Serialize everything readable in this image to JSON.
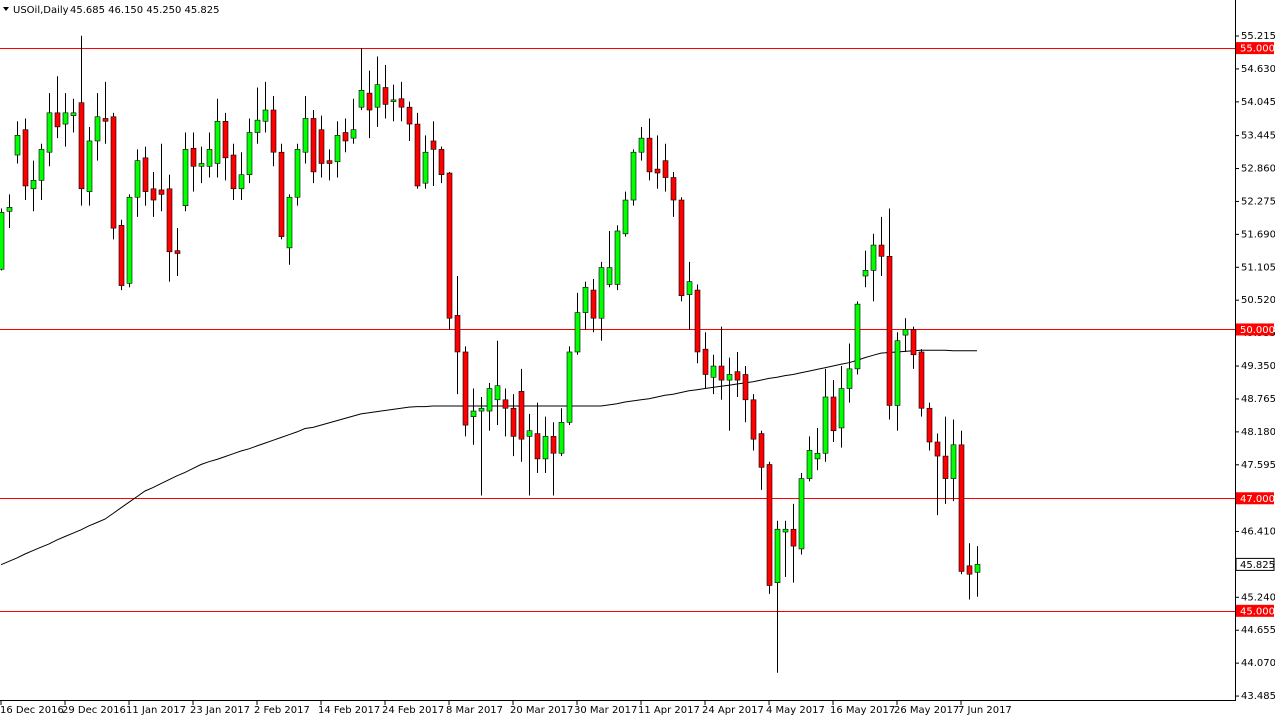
{
  "chart_data": {
    "type": "candlestick",
    "title": "USOil,Daily",
    "ohlc_label": "45.685 46.150 45.250 45.825",
    "categories": [
      "16 Dec 2016",
      null,
      null,
      null,
      null,
      null,
      null,
      null,
      "29 Dec 2016",
      null,
      null,
      null,
      null,
      null,
      null,
      null,
      "11 Jan 2017",
      null,
      null,
      null,
      null,
      null,
      null,
      null,
      "23 Jan 2017",
      null,
      null,
      null,
      null,
      null,
      null,
      null,
      "2 Feb 2017",
      null,
      null,
      null,
      null,
      null,
      null,
      null,
      "14 Feb 2017",
      null,
      null,
      null,
      null,
      null,
      null,
      null,
      "24 Feb 2017",
      null,
      null,
      null,
      null,
      null,
      null,
      null,
      "8 Mar 2017",
      null,
      null,
      null,
      null,
      null,
      null,
      null,
      "20 Mar 2017",
      null,
      null,
      null,
      null,
      null,
      null,
      null,
      "30 Mar 2017",
      null,
      null,
      null,
      null,
      null,
      null,
      null,
      "11 Apr 2017",
      null,
      null,
      null,
      null,
      null,
      null,
      null,
      "24 Apr 2017",
      null,
      null,
      null,
      null,
      null,
      null,
      null,
      "4 May 2017",
      null,
      null,
      null,
      null,
      null,
      null,
      null,
      "16 May 2017",
      null,
      null,
      null,
      null,
      null,
      null,
      null,
      "26 May 2017",
      null,
      null,
      null,
      null,
      null,
      null,
      null,
      "7 Jun 2017",
      null,
      null
    ],
    "open": [
      51.07,
      52.1,
      53.1,
      53.55,
      52.5,
      52.65,
      53.15,
      53.85,
      53.65,
      53.8,
      54.03,
      52.45,
      53.35,
      53.75,
      53.78,
      51.85,
      50.82,
      52.35,
      53.05,
      52.5,
      52.48,
      52.5,
      51.4,
      52.2,
      53.22,
      52.9,
      52.9,
      52.95,
      53.7,
      53.1,
      52.5,
      52.75,
      53.5,
      53.7,
      53.9,
      53.15,
      51.45,
      52.35,
      53.15,
      53.75,
      53.55,
      53.0,
      52.98,
      53.5,
      53.4,
      53.95,
      54.2,
      53.95,
      54.3,
      54.05,
      54.1,
      53.95,
      53.65,
      52.6,
      53.35,
      53.2,
      52.78,
      50.25,
      49.6,
      48.45,
      48.55,
      48.55,
      48.75,
      48.75,
      48.6,
      48.9,
      48.1,
      48.15,
      47.7,
      48.1,
      47.8,
      48.35,
      49.6,
      50.3,
      50.7,
      50.2,
      50.8,
      50.8,
      51.7,
      52.3,
      53.15,
      53.4,
      52.85,
      53.0,
      52.7,
      52.3,
      50.62,
      50.7,
      49.65,
      49.15,
      49.35,
      49.1,
      49.25,
      49.2,
      48.75,
      48.15,
      47.6,
      45.5,
      46.4,
      46.45,
      46.1,
      47.35,
      47.7,
      47.8,
      48.8,
      48.25,
      48.95,
      49.3,
      50.95,
      51.05,
      51.5,
      51.3,
      48.65,
      49.9,
      50.0,
      49.6,
      48.6,
      48.0,
      47.75,
      47.35,
      47.95,
      45.8,
      45.685
    ],
    "high": [
      52.15,
      52.4,
      53.7,
      53.75,
      53.0,
      53.3,
      54.2,
      54.5,
      54.2,
      54.1,
      55.22,
      53.6,
      54.2,
      54.4,
      53.85,
      51.95,
      52.4,
      53.2,
      53.25,
      52.8,
      53.3,
      52.75,
      51.8,
      53.5,
      53.5,
      53.25,
      53.5,
      54.1,
      53.85,
      53.3,
      53.15,
      53.75,
      54.3,
      54.4,
      54.15,
      53.3,
      52.4,
      53.3,
      54.15,
      53.9,
      53.8,
      53.2,
      53.7,
      53.75,
      54.1,
      55.0,
      54.6,
      54.85,
      54.7,
      54.35,
      54.4,
      54.05,
      53.85,
      53.45,
      53.7,
      53.25,
      52.8,
      50.95,
      49.7,
      48.95,
      48.8,
      49.05,
      49.8,
      48.95,
      48.85,
      49.3,
      48.5,
      48.7,
      48.45,
      48.35,
      48.6,
      49.7,
      50.65,
      50.85,
      50.9,
      51.2,
      51.75,
      51.85,
      52.45,
      53.2,
      53.6,
      53.75,
      53.45,
      53.3,
      52.8,
      52.35,
      51.2,
      50.8,
      49.95,
      49.55,
      50.05,
      49.5,
      49.6,
      49.35,
      48.85,
      48.2,
      47.65,
      46.6,
      46.6,
      46.9,
      47.45,
      48.1,
      48.25,
      49.3,
      49.1,
      49.35,
      49.75,
      50.5,
      51.4,
      51.7,
      52.0,
      52.15,
      49.95,
      50.2,
      50.05,
      49.65,
      48.7,
      48.15,
      48.45,
      48.4,
      48.2,
      46.2,
      46.15
    ],
    "low": [
      51.05,
      51.8,
      52.95,
      52.3,
      52.1,
      52.3,
      52.9,
      53.4,
      53.25,
      53.5,
      52.2,
      52.2,
      53.0,
      53.3,
      51.6,
      50.7,
      50.75,
      52.0,
      52.2,
      52.0,
      52.1,
      50.85,
      50.95,
      52.1,
      52.45,
      52.6,
      52.7,
      52.7,
      52.65,
      52.3,
      52.3,
      52.6,
      53.3,
      53.5,
      52.9,
      51.6,
      51.15,
      52.2,
      52.95,
      52.6,
      52.7,
      52.65,
      52.7,
      53.15,
      53.3,
      53.9,
      53.4,
      53.6,
      53.75,
      53.7,
      53.7,
      53.35,
      52.5,
      52.5,
      52.55,
      52.6,
      50.0,
      48.85,
      48.1,
      47.95,
      47.05,
      48.2,
      48.3,
      48.1,
      47.75,
      47.65,
      47.05,
      47.45,
      47.45,
      47.05,
      47.75,
      48.3,
      49.55,
      50.0,
      49.95,
      49.8,
      50.75,
      50.7,
      51.65,
      52.2,
      53.0,
      52.65,
      52.5,
      52.45,
      52.0,
      50.5,
      50.0,
      49.4,
      48.95,
      48.85,
      48.75,
      48.2,
      48.8,
      48.35,
      47.85,
      47.15,
      45.3,
      43.9,
      45.6,
      45.5,
      46.0,
      47.3,
      47.5,
      47.65,
      48.0,
      47.9,
      48.7,
      49.2,
      50.75,
      50.5,
      50.95,
      48.4,
      48.2,
      49.6,
      49.3,
      48.45,
      47.85,
      46.7,
      46.9,
      46.95,
      45.65,
      45.2,
      45.25
    ],
    "close": [
      52.08,
      52.17,
      53.45,
      52.55,
      52.65,
      53.2,
      53.85,
      53.6,
      53.85,
      53.85,
      52.5,
      53.35,
      53.78,
      53.7,
      51.8,
      50.78,
      52.35,
      53.0,
      52.45,
      52.3,
      52.4,
      51.38,
      51.35,
      53.2,
      52.9,
      52.95,
      53.2,
      53.7,
      53.05,
      52.5,
      52.75,
      53.5,
      53.72,
      53.9,
      53.15,
      51.65,
      52.35,
      53.2,
      53.75,
      52.8,
      52.95,
      52.95,
      53.45,
      53.35,
      53.55,
      54.25,
      53.9,
      54.35,
      54.0,
      54.08,
      53.95,
      53.65,
      52.55,
      53.15,
      53.2,
      52.75,
      50.2,
      49.6,
      48.3,
      48.55,
      48.6,
      48.95,
      49.0,
      48.6,
      48.1,
      48.05,
      48.2,
      47.7,
      48.1,
      47.8,
      48.35,
      49.6,
      50.3,
      50.75,
      50.2,
      51.1,
      51.1,
      51.75,
      52.3,
      53.15,
      53.4,
      52.8,
      52.78,
      52.7,
      52.3,
      50.6,
      50.85,
      49.6,
      49.2,
      49.35,
      49.1,
      49.2,
      49.1,
      48.75,
      48.05,
      47.55,
      45.45,
      46.45,
      46.45,
      46.15,
      47.35,
      47.85,
      47.8,
      48.8,
      48.2,
      48.95,
      49.3,
      50.45,
      51.05,
      51.5,
      51.3,
      48.65,
      49.8,
      50.0,
      49.55,
      48.6,
      48.0,
      47.75,
      47.35,
      47.95,
      45.7,
      45.65,
      45.825
    ],
    "up_color": "#00ff00",
    "down_color": "#ff0000",
    "wick_color": "#000000",
    "moving_average": {
      "color": "#000000",
      "values": [
        45.82,
        45.88,
        45.94,
        46.01,
        46.07,
        46.13,
        46.19,
        46.26,
        46.32,
        46.38,
        46.44,
        46.51,
        46.57,
        46.63,
        46.73,
        46.83,
        46.93,
        47.03,
        47.13,
        47.19,
        47.26,
        47.33,
        47.4,
        47.46,
        47.53,
        47.6,
        47.65,
        47.69,
        47.74,
        47.79,
        47.84,
        47.88,
        47.93,
        47.98,
        48.03,
        48.08,
        48.13,
        48.18,
        48.24,
        48.26,
        48.3,
        48.34,
        48.38,
        48.42,
        48.46,
        48.5,
        48.52,
        48.54,
        48.56,
        48.58,
        48.6,
        48.62,
        48.63,
        48.63,
        48.64,
        48.64,
        48.64,
        48.64,
        48.64,
        48.64,
        48.64,
        48.64,
        48.64,
        48.64,
        48.64,
        48.64,
        48.64,
        48.64,
        48.64,
        48.64,
        48.64,
        48.64,
        48.64,
        48.64,
        48.64,
        48.64,
        48.66,
        48.68,
        48.71,
        48.73,
        48.75,
        48.77,
        48.8,
        48.83,
        48.85,
        48.88,
        48.91,
        48.93,
        48.95,
        48.97,
        48.99,
        49.01,
        49.03,
        49.05,
        49.07,
        49.1,
        49.13,
        49.15,
        49.18,
        49.2,
        49.23,
        49.26,
        49.29,
        49.32,
        49.35,
        49.38,
        49.41,
        49.45,
        49.5,
        49.54,
        49.58,
        49.59,
        49.6,
        49.61,
        49.62,
        49.63,
        49.63,
        49.63,
        49.63,
        49.62,
        49.62,
        49.62,
        49.62
      ]
    },
    "hlines": [
      {
        "value": 55,
        "label": "55.000"
      },
      {
        "value": 50,
        "label": "50.000"
      },
      {
        "value": 47,
        "label": "47.000"
      },
      {
        "value": 45,
        "label": "45.000"
      }
    ],
    "hline_color": "#ff0000",
    "last_price": {
      "value": 45.825,
      "label": "45.825"
    },
    "ylim": [
      43.415,
      55.855
    ],
    "yticks": [
      {
        "value": 55.215,
        "label": "55.215"
      },
      {
        "value": 54.63,
        "label": "54.630"
      },
      {
        "value": 54.045,
        "label": "54.045"
      },
      {
        "value": 53.445,
        "label": "53.445"
      },
      {
        "value": 52.86,
        "label": "52.860"
      },
      {
        "value": 52.275,
        "label": "52.275"
      },
      {
        "value": 51.69,
        "label": "51.690"
      },
      {
        "value": 51.105,
        "label": "51.105"
      },
      {
        "value": 50.52,
        "label": "50.520"
      },
      {
        "value": 49.935,
        "label": "49.935"
      },
      {
        "value": 49.35,
        "label": "49.350"
      },
      {
        "value": 48.765,
        "label": "48.765"
      },
      {
        "value": 48.18,
        "label": "48.180"
      },
      {
        "value": 47.595,
        "label": "47.595"
      },
      {
        "value": 46.41,
        "label": "46.410"
      },
      {
        "value": 45.24,
        "label": "45.240"
      },
      {
        "value": 44.655,
        "label": "44.655"
      },
      {
        "value": 44.07,
        "label": "44.070"
      },
      {
        "value": 43.485,
        "label": "43.485"
      }
    ]
  }
}
